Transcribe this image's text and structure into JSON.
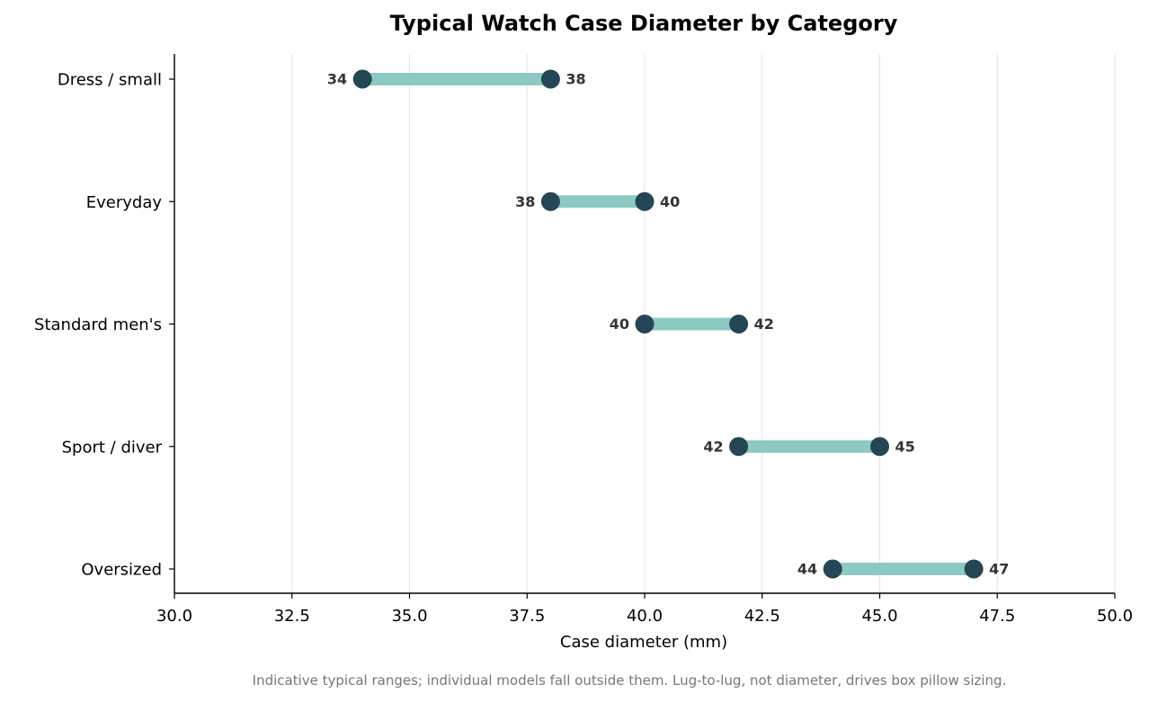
{
  "chart_data": {
    "type": "dumbbell",
    "title": "Typical Watch Case Diameter by Category",
    "xlabel": "Case diameter (mm)",
    "ylabel": "",
    "xlim": [
      30.0,
      50.0
    ],
    "x_ticks": [
      "30.0",
      "32.5",
      "35.0",
      "37.5",
      "40.0",
      "42.5",
      "45.0",
      "47.5",
      "50.0"
    ],
    "grid": "vertical",
    "categories": [
      "Dress / small",
      "Everyday",
      "Standard men's",
      "Sport / diver",
      "Oversized"
    ],
    "min_values": [
      34,
      38,
      40,
      42,
      44
    ],
    "max_values": [
      38,
      40,
      42,
      45,
      47
    ],
    "min_labels": [
      "34",
      "38",
      "40",
      "42",
      "44"
    ],
    "max_labels": [
      "38",
      "40",
      "42",
      "45",
      "47"
    ],
    "footnote": "Indicative typical ranges; individual models fall outside them. Lug-to-lug, not diameter, drives box pillow sizing.",
    "colors": {
      "range_bar": "#8cc9c2",
      "endpoint": "#254654",
      "grid": "#e6e6e6",
      "axis": "#000000",
      "value_text": "#333333"
    }
  }
}
